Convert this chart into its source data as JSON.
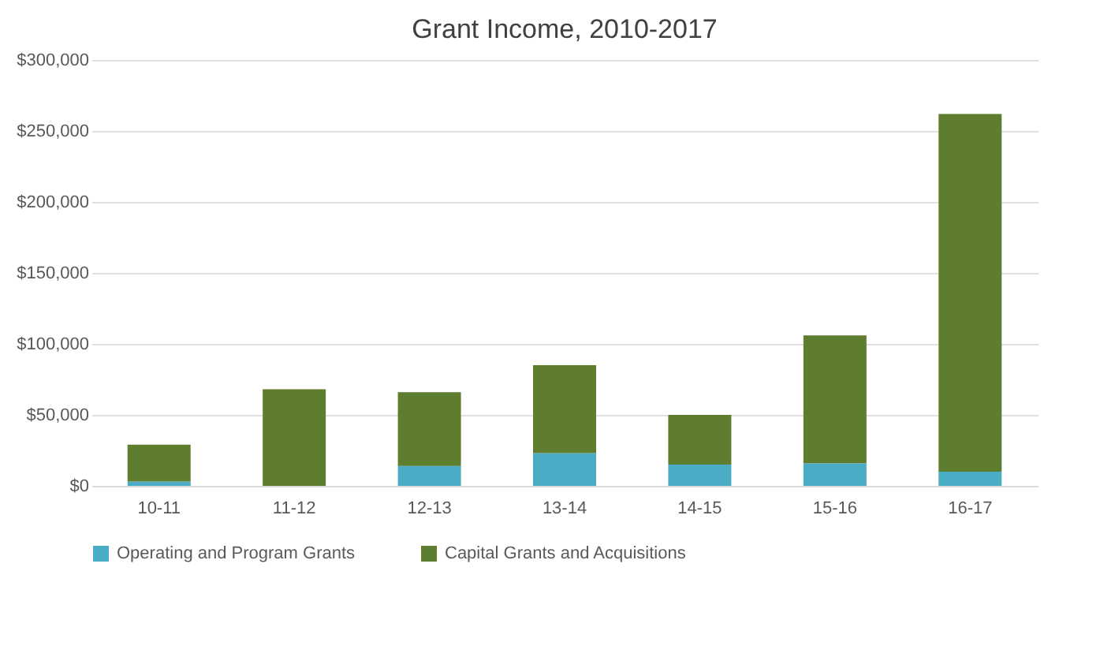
{
  "chart_data": {
    "type": "bar",
    "title": "Grant Income, 2010-2017",
    "stacked": true,
    "categories": [
      "10-11",
      "11-12",
      "12-13",
      "13-14",
      "14-15",
      "15-16",
      "16-17"
    ],
    "series": [
      {
        "name": "Operating and Program Grants",
        "color": "#4bacc6",
        "values": [
          3000,
          0,
          14000,
          23000,
          15000,
          16000,
          10000
        ]
      },
      {
        "name": "Capital Grants and Acquisitions",
        "color": "#5f7d2f",
        "values": [
          26000,
          68000,
          52000,
          62000,
          35000,
          90000,
          252000
        ]
      }
    ],
    "ylim": [
      0,
      300000
    ],
    "yticks": [
      {
        "value": 0,
        "label": "$0"
      },
      {
        "value": 50000,
        "label": "$50,000"
      },
      {
        "value": 100000,
        "label": "$100,000"
      },
      {
        "value": 150000,
        "label": "$150,000"
      },
      {
        "value": 200000,
        "label": "$200,000"
      },
      {
        "value": 250000,
        "label": "$250,000"
      },
      {
        "value": 300000,
        "label": "$300,000"
      }
    ],
    "grid": "y",
    "legend": "bottom"
  }
}
